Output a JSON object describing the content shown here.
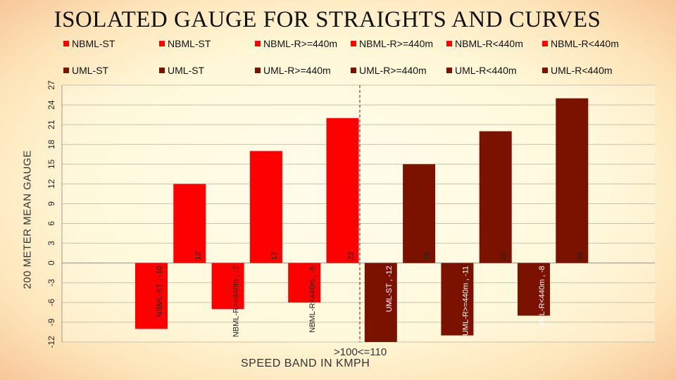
{
  "chart_data": {
    "type": "bar",
    "title": "ISOLATED GAUGE FOR STRAIGHTS AND CURVES",
    "xlabel": "SPEED BAND IN KMPH",
    "ylabel": "200 METER MEAN GAUGE",
    "categories": [
      ">100<=110"
    ],
    "ylim": [
      -12,
      27
    ],
    "yticks": [
      -12,
      -9,
      -6,
      -3,
      0,
      3,
      6,
      9,
      12,
      15,
      18,
      21,
      24,
      27
    ],
    "legend_position": "top",
    "colors": {
      "nbml": "#ff0000",
      "uml": "#7b1200"
    },
    "series": [
      {
        "name": "NBML-ST",
        "group": "nbml",
        "values": [
          -10
        ],
        "label": "NBML-ST , -10"
      },
      {
        "name": "NBML-ST",
        "group": "nbml",
        "values": [
          12
        ],
        "label": "12"
      },
      {
        "name": "NBML-R>=440m",
        "group": "nbml",
        "values": [
          -7
        ],
        "label": "NBML-R>=440m , -7"
      },
      {
        "name": "NBML-R>=440m",
        "group": "nbml",
        "values": [
          17
        ],
        "label": "17"
      },
      {
        "name": "NBML-R<440m",
        "group": "nbml",
        "values": [
          -6
        ],
        "label": "NBML-R<440m , -6"
      },
      {
        "name": "NBML-R<440m",
        "group": "nbml",
        "values": [
          22
        ],
        "label": "22"
      },
      {
        "name": "UML-ST",
        "group": "uml",
        "values": [
          -12
        ],
        "label": "UML-ST , -12"
      },
      {
        "name": "UML-ST",
        "group": "uml",
        "values": [
          15
        ],
        "label": "15"
      },
      {
        "name": "UML-R>=440m",
        "group": "uml",
        "values": [
          -11
        ],
        "label": "UML-R>=440m , -11"
      },
      {
        "name": "UML-R>=440m",
        "group": "uml",
        "values": [
          20
        ],
        "label": "20"
      },
      {
        "name": "UML-R<440m",
        "group": "uml",
        "values": [
          -8
        ],
        "label": "UML-R<440m , -8"
      },
      {
        "name": "UML-R<440m",
        "group": "uml",
        "values": [
          25
        ],
        "label": "25"
      }
    ]
  }
}
